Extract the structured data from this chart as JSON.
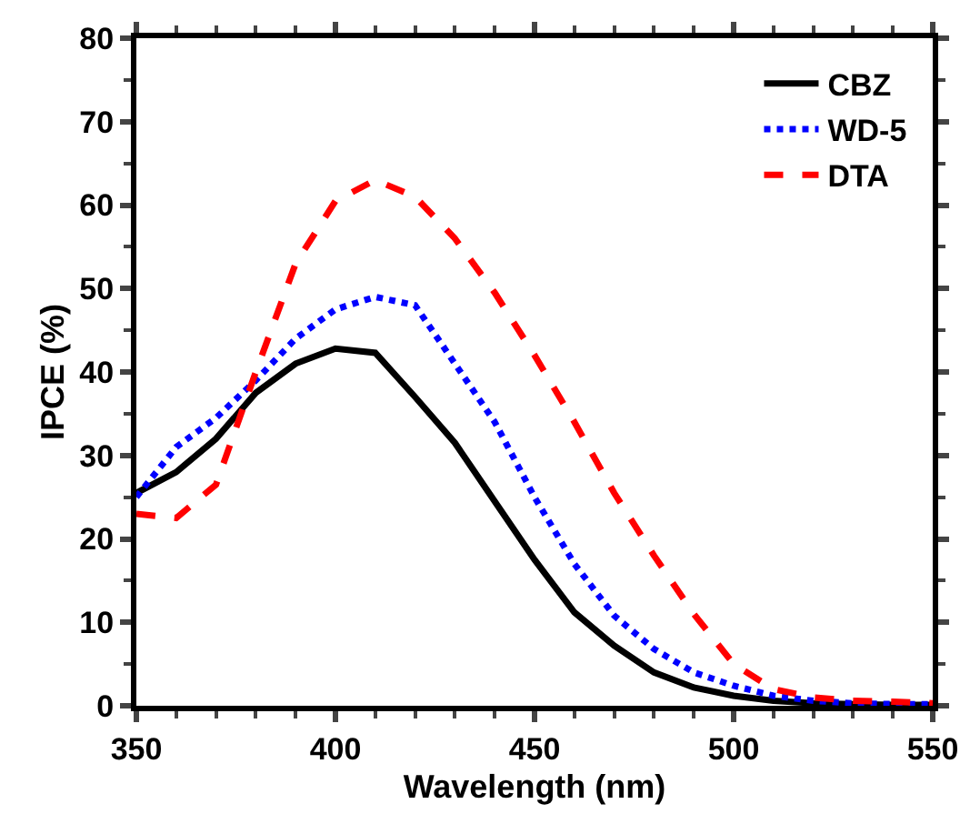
{
  "chart_data": {
    "type": "line",
    "xlabel": "Wavelength (nm)",
    "ylabel": "IPCE (%)",
    "x": [
      350,
      360,
      370,
      380,
      390,
      400,
      410,
      420,
      430,
      440,
      450,
      460,
      470,
      480,
      490,
      500,
      510,
      520,
      530,
      540,
      550
    ],
    "series": [
      {
        "name": "CBZ",
        "color": "#000000",
        "line_style": "solid",
        "values": [
          25.5,
          28,
          32,
          37.5,
          41,
          42.8,
          42.3,
          37,
          31.5,
          24.5,
          17.5,
          11.2,
          7.2,
          4,
          2.2,
          1.2,
          0.6,
          0.3,
          0.2,
          0.1,
          0.1
        ]
      },
      {
        "name": "WD-5",
        "color": "#0000ff",
        "line_style": "dotted",
        "values": [
          25,
          31,
          34.5,
          39,
          44,
          47.5,
          49,
          48,
          41,
          34,
          25,
          17,
          10.8,
          6.8,
          4,
          2.4,
          1.2,
          0.6,
          0.3,
          0.2,
          0.2
        ]
      },
      {
        "name": "DTA",
        "color": "#ff0000",
        "line_style": "dashed",
        "values": [
          23,
          22.5,
          26.5,
          40,
          53,
          60.5,
          63,
          61,
          56,
          49.5,
          42,
          34,
          25.5,
          18,
          11,
          5,
          2,
          1,
          0.6,
          0.5,
          0.3
        ]
      }
    ],
    "xlim": [
      350,
      550
    ],
    "xticks": [
      350,
      400,
      450,
      500,
      550
    ],
    "ylim": [
      0,
      80
    ],
    "yticks": [
      0,
      10,
      20,
      30,
      40,
      50,
      60,
      70,
      80
    ],
    "legend": "top right",
    "marker": "none"
  }
}
